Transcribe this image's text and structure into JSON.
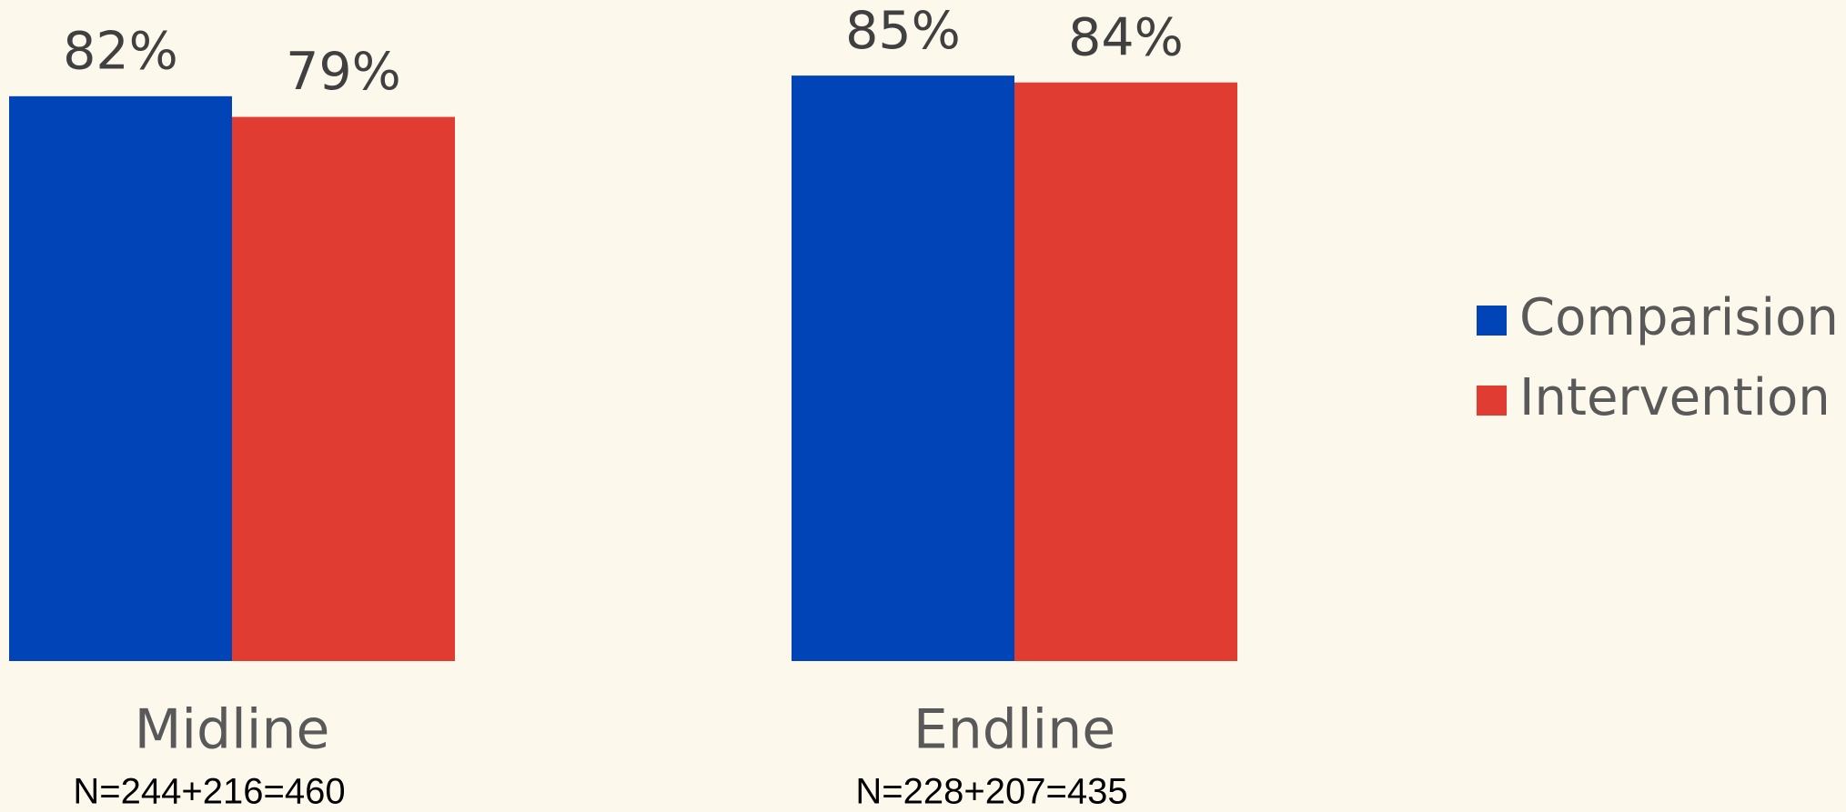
{
  "chart_data": {
    "type": "bar",
    "categories": [
      "Midline",
      "Endline"
    ],
    "category_notes": [
      "N=244+216=460",
      "N=228+207=435"
    ],
    "series": [
      {
        "name": "Comparision",
        "color": "#0044b8",
        "values": [
          82,
          85
        ],
        "value_labels": [
          "82%",
          "85%"
        ]
      },
      {
        "name": "Intervention",
        "color": "#e03c32",
        "values": [
          79,
          84
        ],
        "value_labels": [
          "79%",
          "84%"
        ]
      }
    ],
    "ylim": [
      0,
      100
    ],
    "legend": "right"
  }
}
